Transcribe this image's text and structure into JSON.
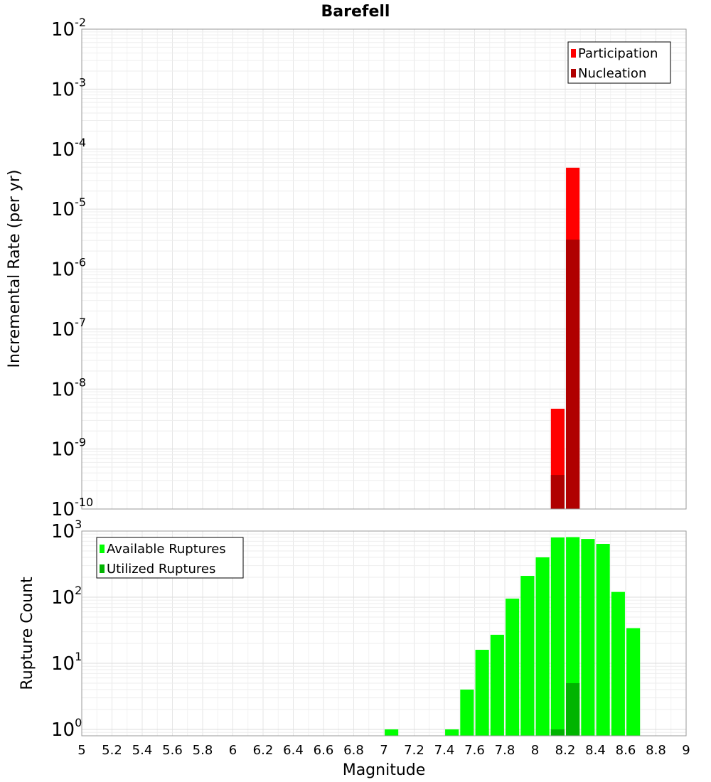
{
  "chart_data": [
    {
      "type": "bar",
      "title": "Barefell",
      "xlabel": "",
      "ylabel": "Incremental Rate (per yr)",
      "yscale": "log",
      "xlim": [
        5,
        9
      ],
      "ylim": [
        1e-10,
        0.01
      ],
      "grid": true,
      "legend_position": "top-right",
      "y_tick_exponents": [
        "-2",
        "-3",
        "-4",
        "-5",
        "-6",
        "-7",
        "-8",
        "-9",
        "-10"
      ],
      "y_tick_base": "10",
      "x": [
        8.15,
        8.25
      ],
      "series": [
        {
          "name": "Participation",
          "color": "#ff0000",
          "values": [
            4.7e-09,
            4.9e-05
          ]
        },
        {
          "name": "Nucleation",
          "color": "#b00000",
          "values": [
            3.7e-10,
            3.1e-06
          ]
        }
      ]
    },
    {
      "type": "bar",
      "title": "",
      "xlabel": "Magnitude",
      "ylabel": "Rupture Count",
      "yscale": "log",
      "xlim": [
        5,
        9
      ],
      "ylim": [
        0.8,
        1000
      ],
      "grid": true,
      "legend_position": "top-left",
      "y_tick_exponents": [
        "3",
        "2",
        "1",
        "0"
      ],
      "y_tick_base": "10",
      "x_tick_labels": [
        "5",
        "5.2",
        "5.4",
        "5.6",
        "5.8",
        "6",
        "6.2",
        "6.4",
        "6.6",
        "6.8",
        "7",
        "7.2",
        "7.4",
        "7.6",
        "7.8",
        "8",
        "8.2",
        "8.4",
        "8.6",
        "8.8",
        "9"
      ],
      "x": [
        7.05,
        7.45,
        7.55,
        7.65,
        7.75,
        7.85,
        7.95,
        8.05,
        8.15,
        8.25,
        8.35,
        8.45,
        8.55,
        8.65
      ],
      "series": [
        {
          "name": "Available Ruptures",
          "color": "#00ff00",
          "values": [
            1,
            1,
            4,
            16,
            27,
            95,
            210,
            400,
            800,
            810,
            760,
            640,
            120,
            34
          ]
        },
        {
          "name": "Utilized Ruptures",
          "color": "#00b400",
          "values": [
            0,
            0,
            0,
            0,
            0,
            0,
            0,
            0,
            1,
            5,
            0,
            0,
            0,
            0
          ]
        }
      ]
    }
  ]
}
